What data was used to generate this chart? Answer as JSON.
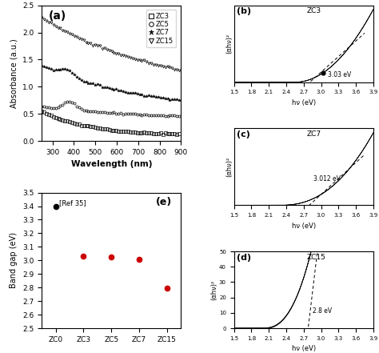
{
  "title_a": "(a)",
  "title_b": "(b)",
  "title_c": "(c)",
  "title_d": "(d)",
  "title_e": "(e)",
  "label_ZC3": "ZC3",
  "label_ZC5": "ZC5",
  "label_ZC7": "ZC7",
  "label_ZC15": "ZC15",
  "panel_a": {
    "xlabel": "Wavelength (nm)",
    "ylabel": "Absorbance (a.u.)",
    "xlim": [
      250,
      900
    ],
    "ylim": [
      0.0,
      2.5
    ],
    "yticks": [
      0.0,
      0.5,
      1.0,
      1.5,
      2.0,
      2.5
    ],
    "xticks": [
      300,
      400,
      500,
      600,
      700,
      800,
      900
    ]
  },
  "panel_bcd": {
    "xlabel": "hν (eV)",
    "ylabel": "(αhν)²",
    "xlim": [
      1.5,
      3.9
    ],
    "xticks": [
      1.5,
      1.8,
      2.1,
      2.4,
      2.7,
      3.0,
      3.3,
      3.6,
      3.9
    ]
  },
  "panel_b": {
    "bandgap": 3.03,
    "bandgap_label": "3.03 eV",
    "title": "ZC3"
  },
  "panel_c": {
    "bandgap": 3.012,
    "bandgap_label": "3.012 eV",
    "title": "ZC7"
  },
  "panel_d": {
    "bandgap": 2.8,
    "bandgap_label": "2.8 eV",
    "ylim": [
      0,
      50
    ],
    "yticks": [
      0,
      10,
      20,
      30,
      40,
      50
    ],
    "title": "ZC15"
  },
  "panel_e": {
    "ylabel": "Band gap (eV)",
    "xlim": [
      -0.5,
      4.5
    ],
    "ylim": [
      2.5,
      3.5
    ],
    "yticks": [
      2.5,
      2.6,
      2.7,
      2.8,
      2.9,
      3.0,
      3.1,
      3.2,
      3.3,
      3.4,
      3.5
    ],
    "xtick_labels": [
      "ZC0",
      "ZC3",
      "ZC5",
      "ZC7",
      "ZC15"
    ],
    "ref35_label": "[Ref 35]",
    "ref35_x": 0,
    "ref35_y": 3.4,
    "data_x": [
      1,
      2,
      3,
      4
    ],
    "data_y": [
      3.03,
      3.025,
      3.01,
      2.795
    ],
    "title": "(e)"
  },
  "bg_color": "#ffffff",
  "line_color": "#000000",
  "dot_color": "#cc0000"
}
